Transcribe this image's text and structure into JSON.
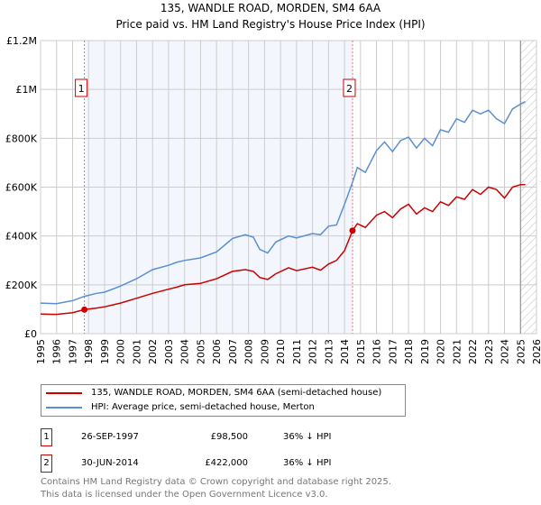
{
  "title": "135, WANDLE ROAD, MORDEN, SM4 6AA",
  "subtitle": "Price paid vs. HM Land Registry's House Price Index (HPI)",
  "chart_data": {
    "type": "line",
    "xlim": [
      1995,
      2026
    ],
    "ylim": [
      0,
      1200000
    ],
    "yticks": [
      {
        "v": 0,
        "l": "£0"
      },
      {
        "v": 200000,
        "l": "£200K"
      },
      {
        "v": 400000,
        "l": "£400K"
      },
      {
        "v": 600000,
        "l": "£600K"
      },
      {
        "v": 800000,
        "l": "£800K"
      },
      {
        "v": 1000000,
        "l": "£1M"
      },
      {
        "v": 1200000,
        "l": "£1.2M"
      }
    ],
    "xticks": [
      "1995",
      "1996",
      "1997",
      "1998",
      "1999",
      "2000",
      "2001",
      "2002",
      "2003",
      "2004",
      "2005",
      "2006",
      "2007",
      "2008",
      "2009",
      "2010",
      "2011",
      "2012",
      "2013",
      "2014",
      "2015",
      "2016",
      "2017",
      "2018",
      "2019",
      "2020",
      "2021",
      "2022",
      "2023",
      "2024",
      "2025",
      "2026"
    ],
    "shaded_range": [
      1997.74,
      2014.5
    ],
    "hatched_from": 2025.0,
    "colors": {
      "property": "#cc0000",
      "hpi": "#5b8fd0"
    },
    "series": [
      {
        "name": "135, WANDLE ROAD, MORDEN, SM4 6AA (semi-detached house)",
        "key": "property",
        "x": [
          1995,
          1996,
          1997,
          1997.74,
          1998.5,
          1999,
          2000,
          2001,
          2002,
          2003,
          2003.5,
          2004,
          2005,
          2006,
          2007,
          2007.8,
          2008.3,
          2008.7,
          2009.2,
          2009.7,
          2010.5,
          2011,
          2012,
          2012.5,
          2013,
          2013.5,
          2014,
          2014.5,
          2014.8,
          2015.3,
          2016,
          2016.5,
          2017,
          2017.5,
          2018,
          2018.5,
          2019,
          2019.5,
          2020,
          2020.5,
          2021,
          2021.5,
          2022,
          2022.5,
          2023,
          2023.5,
          2024,
          2024.5,
          2025,
          2025.3
        ],
        "y": [
          80000,
          79000,
          86000,
          98500,
          105000,
          110000,
          125000,
          145000,
          165000,
          182000,
          190000,
          200000,
          206000,
          225000,
          255000,
          262000,
          255000,
          230000,
          222000,
          245000,
          270000,
          258000,
          272000,
          260000,
          285000,
          300000,
          340000,
          422000,
          450000,
          435000,
          485000,
          500000,
          475000,
          510000,
          530000,
          490000,
          515000,
          500000,
          540000,
          525000,
          560000,
          550000,
          590000,
          570000,
          600000,
          590000,
          555000,
          600000,
          610000,
          610000
        ]
      },
      {
        "name": "HPI: Average price, semi-detached house, Merton",
        "key": "hpi",
        "x": [
          1995,
          1996,
          1997,
          1997.74,
          1998.5,
          1999,
          2000,
          2001,
          2002,
          2003,
          2003.5,
          2004,
          2005,
          2006,
          2007,
          2007.8,
          2008.3,
          2008.7,
          2009.2,
          2009.7,
          2010.5,
          2011,
          2012,
          2012.5,
          2013,
          2013.5,
          2014,
          2014.5,
          2014.8,
          2015.3,
          2016,
          2016.5,
          2017,
          2017.5,
          2018,
          2018.5,
          2019,
          2019.5,
          2020,
          2020.5,
          2021,
          2021.5,
          2022,
          2022.5,
          2023,
          2023.5,
          2024,
          2024.5,
          2025,
          2025.3
        ],
        "y": [
          125000,
          123000,
          135000,
          153000,
          165000,
          170000,
          195000,
          225000,
          262000,
          280000,
          292000,
          300000,
          310000,
          335000,
          390000,
          405000,
          395000,
          345000,
          330000,
          375000,
          400000,
          392000,
          410000,
          405000,
          440000,
          445000,
          530000,
          620000,
          680000,
          660000,
          750000,
          785000,
          745000,
          790000,
          805000,
          760000,
          800000,
          770000,
          835000,
          825000,
          880000,
          865000,
          915000,
          900000,
          915000,
          880000,
          860000,
          920000,
          940000,
          950000
        ]
      }
    ],
    "sales": [
      {
        "label": "1",
        "date": "26-SEP-1997",
        "x": 1997.74,
        "price": "£98,500",
        "value": 98500,
        "delta": "36% ↓ HPI"
      },
      {
        "label": "2",
        "date": "30-JUN-2014",
        "x": 2014.5,
        "price": "£422,000",
        "value": 422000,
        "delta": "36% ↓ HPI"
      }
    ]
  },
  "footer": [
    "Contains HM Land Registry data © Crown copyright and database right 2025.",
    "This data is licensed under the Open Government Licence v3.0."
  ]
}
